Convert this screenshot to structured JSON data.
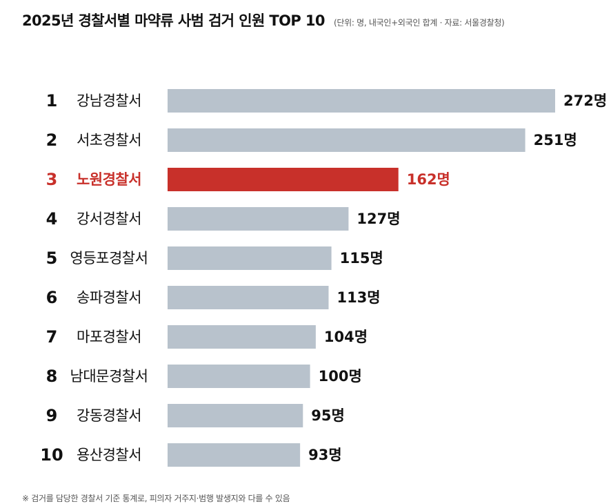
{
  "header": {
    "title": "2025년 경찰서별 마약류 사범 검거 인원 TOP 10",
    "note": "(단위: 명, 내국인+외국인 합계 · 자료: 서울경찰청)"
  },
  "footnote": "※ 검거를 담당한 경찰서 기준 통계로, 피의자 거주지·범행 발생지와 다를 수 있음",
  "colors": {
    "bar": "#b8c2cc",
    "highlight": "#c8302a",
    "text": "#111111"
  },
  "chart_data": {
    "type": "bar",
    "orientation": "horizontal",
    "categories": [
      "강남경찰서",
      "서초경찰서",
      "노원경찰서",
      "강서경찰서",
      "영등포경찰서",
      "송파경찰서",
      "마포경찰서",
      "남대문경찰서",
      "강동경찰서",
      "용산경찰서"
    ],
    "ranks": [
      "1",
      "2",
      "3",
      "4",
      "5",
      "6",
      "7",
      "8",
      "9",
      "10"
    ],
    "values": [
      272,
      251,
      162,
      127,
      115,
      113,
      104,
      100,
      95,
      93
    ],
    "value_labels": [
      "272명",
      "251명",
      "162명",
      "127명",
      "115명",
      "113명",
      "104명",
      "100명",
      "95명",
      "93명"
    ],
    "highlight_index": 2,
    "title": "2025년 경찰서별 마약류 사범 검거 인원 TOP 10",
    "xlabel": "",
    "ylabel": "",
    "xlim": [
      0,
      272
    ],
    "grid": false,
    "legend": "none"
  }
}
